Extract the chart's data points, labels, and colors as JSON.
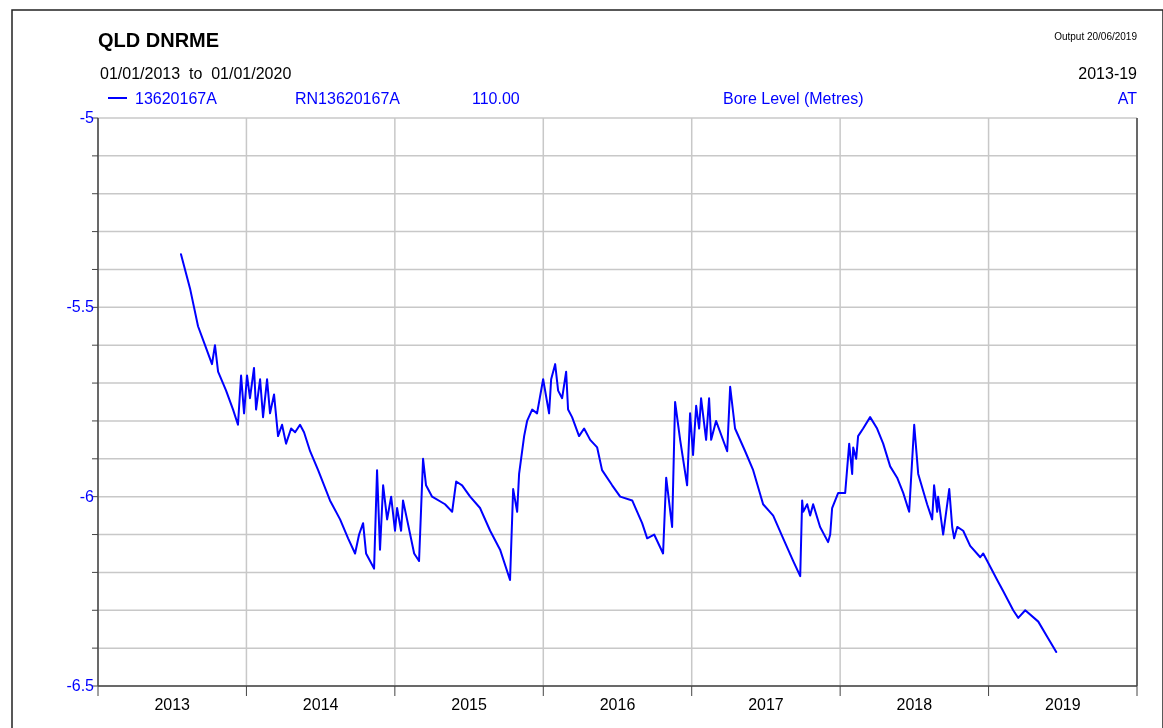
{
  "chart_data": {
    "type": "line",
    "title": "QLD DNRME",
    "subtitle": "01/01/2013  to  01/01/2020",
    "ylabel": "Bore Level (Metres)",
    "annotations": [
      "Output 20/06/2019",
      "2013-19",
      "RN13620167A",
      "110.00",
      "AT"
    ],
    "xlim": [
      2013,
      2020
    ],
    "xticks": [
      {
        "value": 2013,
        "label": null
      },
      {
        "value": 2013.5,
        "label": "2013"
      },
      {
        "value": 2014,
        "label": null
      },
      {
        "value": 2014.5,
        "label": "2014"
      },
      {
        "value": 2015,
        "label": null
      },
      {
        "value": 2015.5,
        "label": "2015"
      },
      {
        "value": 2016,
        "label": null
      },
      {
        "value": 2016.5,
        "label": "2016"
      },
      {
        "value": 2017,
        "label": null
      },
      {
        "value": 2017.5,
        "label": "2017"
      },
      {
        "value": 2018,
        "label": null
      },
      {
        "value": 2018.5,
        "label": "2018"
      },
      {
        "value": 2019,
        "label": null
      },
      {
        "value": 2019.5,
        "label": "2019"
      },
      {
        "value": 2020,
        "label": null
      }
    ],
    "ylim": [
      -6.5,
      -5
    ],
    "yticks": [
      -6.5,
      {
        "value": -6.4,
        "label": null
      },
      {
        "value": -6.3,
        "label": null
      },
      {
        "value": -6.2,
        "label": null
      },
      {
        "value": -6.1,
        "label": null
      },
      -6,
      {
        "value": -5.9,
        "label": null
      },
      {
        "value": -5.8,
        "label": null
      },
      {
        "value": -5.7,
        "label": null
      },
      {
        "value": -5.6,
        "label": null
      },
      -5.5,
      {
        "value": -5.4,
        "label": null
      },
      {
        "value": -5.3,
        "label": null
      },
      {
        "value": -5.2,
        "label": null
      },
      {
        "value": -5.1,
        "label": null
      },
      -5
    ],
    "grid": true,
    "legend": "top left",
    "line_style": "solid",
    "marker": "none",
    "series": [
      {
        "name": "13620167A",
        "color": "#0000ff",
        "x": [
          2013.559,
          2013.62,
          2013.674,
          2013.721,
          2013.768,
          2013.788,
          2013.809,
          2013.863,
          2013.91,
          2013.943,
          2013.964,
          2013.984,
          2014.004,
          2014.024,
          2014.051,
          2014.065,
          2014.092,
          2014.112,
          2014.139,
          2014.159,
          2014.186,
          2014.213,
          2014.24,
          2014.267,
          2014.301,
          2014.328,
          2014.361,
          2014.388,
          2014.429,
          2014.483,
          2014.563,
          2014.631,
          2014.685,
          2014.732,
          2014.759,
          2014.786,
          2014.806,
          2014.833,
          2014.86,
          2014.88,
          2014.9,
          2014.921,
          2014.948,
          2014.975,
          2015.001,
          2015.015,
          2015.042,
          2015.055,
          2015.082,
          2015.13,
          2015.163,
          2015.19,
          2015.21,
          2015.251,
          2015.338,
          2015.386,
          2015.413,
          2015.453,
          2015.507,
          2015.574,
          2015.642,
          2015.709,
          2015.776,
          2015.797,
          2015.824,
          2015.837,
          2015.871,
          2015.891,
          2015.925,
          2015.958,
          2015.999,
          2016.039,
          2016.053,
          2016.08,
          2016.1,
          2016.127,
          2016.154,
          2016.167,
          2016.194,
          2016.241,
          2016.275,
          2016.316,
          2016.363,
          2016.396,
          2016.464,
          2016.518,
          2016.599,
          2016.666,
          2016.7,
          2016.747,
          2016.807,
          2016.828,
          2016.868,
          2016.888,
          2016.922,
          2016.969,
          2016.989,
          2017.009,
          2017.03,
          2017.05,
          2017.063,
          2017.097,
          2017.117,
          2017.131,
          2017.164,
          2017.239,
          2017.259,
          2017.292,
          2017.36,
          2017.414,
          2017.481,
          2017.549,
          2017.616,
          2017.684,
          2017.731,
          2017.744,
          2017.751,
          2017.778,
          2017.798,
          2017.818,
          2017.865,
          2017.919,
          2017.933,
          2017.946,
          2017.987,
          2018.034,
          2018.061,
          2018.081,
          2018.088,
          2018.108,
          2018.121,
          2018.155,
          2018.202,
          2018.249,
          2018.29,
          2018.337,
          2018.384,
          2018.425,
          2018.465,
          2018.499,
          2018.526,
          2018.586,
          2018.62,
          2018.633,
          2018.654,
          2018.66,
          2018.694,
          2018.735,
          2018.755,
          2018.768,
          2018.789,
          2018.829,
          2018.876,
          2018.944,
          2018.964,
          2018.991,
          2019.058,
          2019.099,
          2019.166,
          2019.2,
          2019.247,
          2019.335,
          2019.395,
          2019.456
        ],
        "values": [
          -5.36,
          -5.45,
          -5.55,
          -5.6,
          -5.65,
          -5.6,
          -5.67,
          -5.72,
          -5.77,
          -5.81,
          -5.68,
          -5.78,
          -5.68,
          -5.74,
          -5.66,
          -5.77,
          -5.69,
          -5.79,
          -5.69,
          -5.78,
          -5.73,
          -5.84,
          -5.81,
          -5.86,
          -5.82,
          -5.83,
          -5.81,
          -5.83,
          -5.88,
          -5.93,
          -6.01,
          -6.06,
          -6.11,
          -6.15,
          -6.1,
          -6.07,
          -6.15,
          -6.17,
          -6.19,
          -5.93,
          -6.14,
          -5.97,
          -6.06,
          -6.0,
          -6.09,
          -6.03,
          -6.09,
          -6.01,
          -6.06,
          -6.15,
          -6.17,
          -5.9,
          -5.97,
          -6.0,
          -6.02,
          -6.04,
          -5.96,
          -5.97,
          -6.0,
          -6.03,
          -6.09,
          -6.14,
          -6.22,
          -5.98,
          -6.04,
          -5.94,
          -5.84,
          -5.8,
          -5.77,
          -5.78,
          -5.69,
          -5.78,
          -5.69,
          -5.65,
          -5.72,
          -5.74,
          -5.67,
          -5.77,
          -5.79,
          -5.84,
          -5.82,
          -5.85,
          -5.87,
          -5.93,
          -5.97,
          -6.0,
          -6.01,
          -6.07,
          -6.11,
          -6.1,
          -6.15,
          -5.95,
          -6.08,
          -5.75,
          -5.85,
          -5.97,
          -5.78,
          -5.89,
          -5.76,
          -5.82,
          -5.74,
          -5.85,
          -5.74,
          -5.85,
          -5.8,
          -5.88,
          -5.71,
          -5.82,
          -5.88,
          -5.93,
          -6.02,
          -6.05,
          -6.11,
          -6.17,
          -6.21,
          -6.01,
          -6.04,
          -6.02,
          -6.05,
          -6.02,
          -6.08,
          -6.12,
          -6.1,
          -6.03,
          -5.99,
          -5.99,
          -5.86,
          -5.94,
          -5.87,
          -5.9,
          -5.84,
          -5.82,
          -5.79,
          -5.82,
          -5.86,
          -5.92,
          -5.95,
          -5.99,
          -6.04,
          -5.81,
          -5.94,
          -6.02,
          -6.06,
          -5.97,
          -6.04,
          -6.0,
          -6.1,
          -5.98,
          -6.08,
          -6.11,
          -6.08,
          -6.09,
          -6.13,
          -6.16,
          -6.15,
          -6.17,
          -6.22,
          -6.25,
          -6.3,
          -6.32,
          -6.3,
          -6.33,
          -6.37,
          -6.41
        ]
      }
    ]
  }
}
